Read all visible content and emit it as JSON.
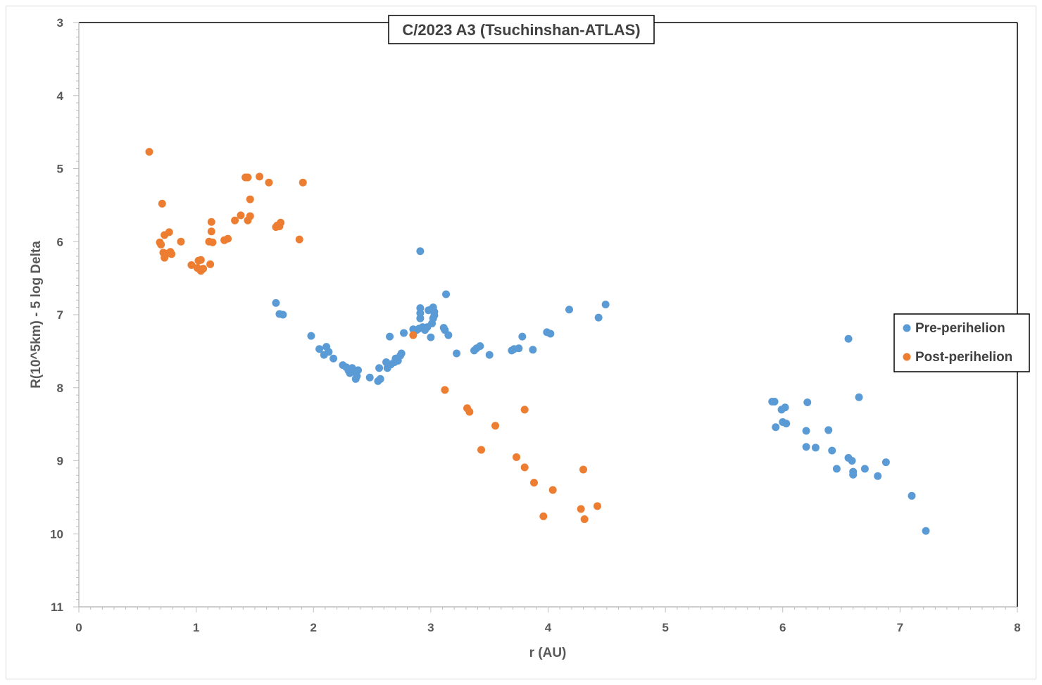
{
  "chart_data": {
    "type": "scatter",
    "title": "C/2023 A3 (Tsuchinshan-ATLAS)",
    "xlabel": "r (AU)",
    "ylabel": "R(10^5km) - 5 log Delta",
    "xlim": [
      0,
      8
    ],
    "ylim": [
      3,
      11
    ],
    "y_inverted": true,
    "x_ticks": [
      "0",
      "1",
      "2",
      "3",
      "4",
      "5",
      "6",
      "7",
      "8"
    ],
    "y_ticks": [
      "3",
      "4",
      "5",
      "6",
      "7",
      "8",
      "9",
      "10",
      "11"
    ],
    "grid": false,
    "legend_position": "right",
    "series": [
      {
        "name": "Pre-perihelion",
        "color": "#5b9bd5",
        "points": [
          [
            1.68,
            6.84
          ],
          [
            1.71,
            6.99
          ],
          [
            1.74,
            7.0
          ],
          [
            1.98,
            7.29
          ],
          [
            2.05,
            7.47
          ],
          [
            2.09,
            7.55
          ],
          [
            2.11,
            7.44
          ],
          [
            2.13,
            7.51
          ],
          [
            2.17,
            7.6
          ],
          [
            2.25,
            7.69
          ],
          [
            2.28,
            7.72
          ],
          [
            2.3,
            7.77
          ],
          [
            2.31,
            7.8
          ],
          [
            2.33,
            7.73
          ],
          [
            2.35,
            7.78
          ],
          [
            2.36,
            7.88
          ],
          [
            2.37,
            7.84
          ],
          [
            2.38,
            7.76
          ],
          [
            2.48,
            7.86
          ],
          [
            2.55,
            7.91
          ],
          [
            2.56,
            7.73
          ],
          [
            2.57,
            7.88
          ],
          [
            2.62,
            7.65
          ],
          [
            2.63,
            7.73
          ],
          [
            2.65,
            7.3
          ],
          [
            2.66,
            7.68
          ],
          [
            2.69,
            7.65
          ],
          [
            2.7,
            7.6
          ],
          [
            2.72,
            7.63
          ],
          [
            2.74,
            7.56
          ],
          [
            2.75,
            7.53
          ],
          [
            2.77,
            7.25
          ],
          [
            2.85,
            7.2
          ],
          [
            2.88,
            7.21
          ],
          [
            2.9,
            7.19
          ],
          [
            2.91,
            6.91
          ],
          [
            2.91,
            6.98
          ],
          [
            2.91,
            7.05
          ],
          [
            2.91,
            6.13
          ],
          [
            2.93,
            7.17
          ],
          [
            2.95,
            7.21
          ],
          [
            2.97,
            7.17
          ],
          [
            2.98,
            6.94
          ],
          [
            3.0,
            6.93
          ],
          [
            3.0,
            7.31
          ],
          [
            3.01,
            7.12
          ],
          [
            3.02,
            7.05
          ],
          [
            3.02,
            6.9
          ],
          [
            3.03,
            6.96
          ],
          [
            3.03,
            7.01
          ],
          [
            3.11,
            7.18
          ],
          [
            3.12,
            7.21
          ],
          [
            3.13,
            6.72
          ],
          [
            3.15,
            7.28
          ],
          [
            3.22,
            7.53
          ],
          [
            3.37,
            7.49
          ],
          [
            3.39,
            7.46
          ],
          [
            3.42,
            7.43
          ],
          [
            3.5,
            7.55
          ],
          [
            3.69,
            7.49
          ],
          [
            3.71,
            7.47
          ],
          [
            3.75,
            7.46
          ],
          [
            3.78,
            7.3
          ],
          [
            3.87,
            7.48
          ],
          [
            3.99,
            7.24
          ],
          [
            4.02,
            7.26
          ],
          [
            4.18,
            6.93
          ],
          [
            4.43,
            7.04
          ],
          [
            4.49,
            6.86
          ],
          [
            5.91,
            8.19
          ],
          [
            5.93,
            8.19
          ],
          [
            5.94,
            8.54
          ],
          [
            5.99,
            8.3
          ],
          [
            6.0,
            8.47
          ],
          [
            6.02,
            8.27
          ],
          [
            6.03,
            8.49
          ],
          [
            6.2,
            8.81
          ],
          [
            6.2,
            8.59
          ],
          [
            6.21,
            8.2
          ],
          [
            6.28,
            8.82
          ],
          [
            6.39,
            8.58
          ],
          [
            6.42,
            8.86
          ],
          [
            6.46,
            9.11
          ],
          [
            6.56,
            8.96
          ],
          [
            6.56,
            7.33
          ],
          [
            6.59,
            9.0
          ],
          [
            6.6,
            9.19
          ],
          [
            6.6,
            9.15
          ],
          [
            6.65,
            8.13
          ],
          [
            6.7,
            9.11
          ],
          [
            6.81,
            9.21
          ],
          [
            6.88,
            9.02
          ],
          [
            7.1,
            9.48
          ],
          [
            7.22,
            9.96
          ]
        ]
      },
      {
        "name": "Post-perihelion",
        "color": "#ed7d31",
        "points": [
          [
            0.6,
            4.77
          ],
          [
            0.69,
            6.01
          ],
          [
            0.7,
            6.04
          ],
          [
            0.71,
            5.48
          ],
          [
            0.72,
            6.15
          ],
          [
            0.73,
            5.91
          ],
          [
            0.73,
            6.22
          ],
          [
            0.76,
            6.16
          ],
          [
            0.77,
            5.87
          ],
          [
            0.78,
            6.14
          ],
          [
            0.79,
            6.17
          ],
          [
            0.87,
            6.0
          ],
          [
            0.96,
            6.32
          ],
          [
            1.01,
            6.36
          ],
          [
            1.02,
            6.26
          ],
          [
            1.03,
            6.38
          ],
          [
            1.04,
            6.25
          ],
          [
            1.04,
            6.4
          ],
          [
            1.06,
            6.37
          ],
          [
            1.11,
            6.0
          ],
          [
            1.12,
            6.31
          ],
          [
            1.13,
            5.86
          ],
          [
            1.13,
            5.73
          ],
          [
            1.14,
            6.01
          ],
          [
            1.24,
            5.98
          ],
          [
            1.27,
            5.96
          ],
          [
            1.33,
            5.71
          ],
          [
            1.38,
            5.64
          ],
          [
            1.42,
            5.12
          ],
          [
            1.44,
            5.12
          ],
          [
            1.44,
            5.71
          ],
          [
            1.46,
            5.42
          ],
          [
            1.46,
            5.65
          ],
          [
            1.54,
            5.11
          ],
          [
            1.62,
            5.19
          ],
          [
            1.68,
            5.8
          ],
          [
            1.69,
            5.78
          ],
          [
            1.71,
            5.79
          ],
          [
            1.72,
            5.74
          ],
          [
            1.88,
            5.97
          ],
          [
            1.91,
            5.19
          ],
          [
            2.85,
            7.28
          ],
          [
            3.12,
            8.03
          ],
          [
            3.31,
            8.28
          ],
          [
            3.33,
            8.33
          ],
          [
            3.43,
            8.85
          ],
          [
            3.55,
            8.52
          ],
          [
            3.73,
            8.95
          ],
          [
            3.8,
            9.09
          ],
          [
            3.8,
            8.3
          ],
          [
            3.88,
            9.3
          ],
          [
            3.96,
            9.76
          ],
          [
            4.04,
            9.4
          ],
          [
            4.28,
            9.66
          ],
          [
            4.3,
            9.12
          ],
          [
            4.31,
            9.8
          ],
          [
            4.42,
            9.62
          ]
        ]
      }
    ]
  }
}
